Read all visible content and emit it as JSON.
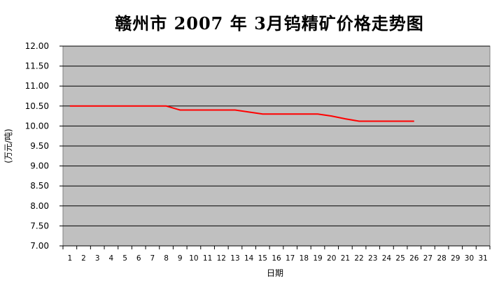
{
  "chart_data": {
    "type": "line",
    "title": "赣州市 2007 年 3月钨精矿价格走势图",
    "xlabel": "日期",
    "ylabel": "(万元/吨)",
    "x": [
      1,
      2,
      3,
      4,
      5,
      6,
      7,
      8,
      9,
      10,
      11,
      12,
      13,
      14,
      15,
      16,
      17,
      18,
      19,
      20,
      21,
      22,
      23,
      24,
      25,
      26,
      27,
      28,
      29,
      30,
      31
    ],
    "ylim": [
      7.0,
      12.0
    ],
    "yticks": [
      "7.00",
      "7.50",
      "8.00",
      "8.50",
      "9.00",
      "9.50",
      "10.00",
      "10.50",
      "11.00",
      "11.50",
      "12.00"
    ],
    "grid": true,
    "plot_background": "#c0c0c0",
    "series": [
      {
        "color": "#ff0000",
        "x": [
          1,
          2,
          3,
          4,
          5,
          6,
          7,
          8,
          9,
          10,
          11,
          12,
          13,
          14,
          15,
          16,
          17,
          18,
          19,
          20,
          21,
          22,
          23,
          24,
          25,
          26
        ],
        "values": [
          10.5,
          10.5,
          10.5,
          10.5,
          10.5,
          10.5,
          10.5,
          10.5,
          10.4,
          10.4,
          10.4,
          10.4,
          10.4,
          10.35,
          10.3,
          10.3,
          10.3,
          10.3,
          10.3,
          10.25,
          10.18,
          10.12,
          10.12,
          10.12,
          10.12,
          10.12
        ]
      }
    ]
  }
}
